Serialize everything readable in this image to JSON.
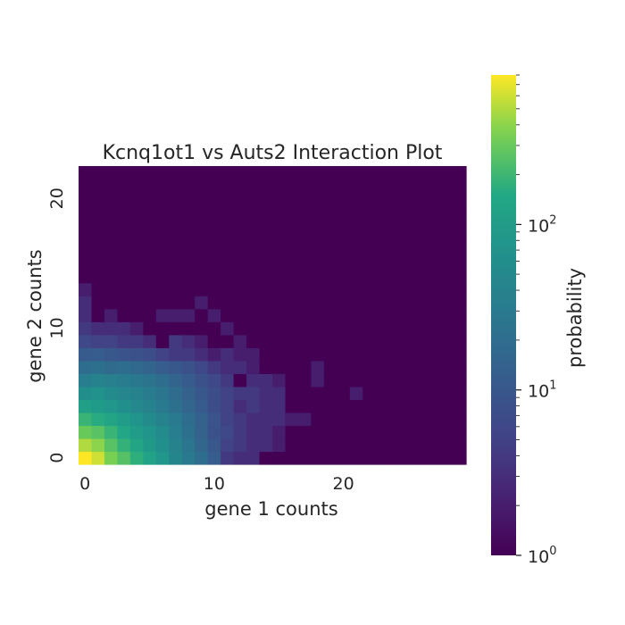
{
  "chart_data": {
    "type": "heatmap",
    "title": "Kcnq1ot1 vs Auts2 Interaction Plot",
    "xlabel": "gene 1 counts",
    "ylabel": "gene 2 counts",
    "x_ticks": [
      "0",
      "10",
      "20"
    ],
    "y_ticks": [
      "0",
      "10",
      "20"
    ],
    "x_range": [
      0,
      29
    ],
    "y_range": [
      0,
      22
    ],
    "colorbar": {
      "label": "probability",
      "scale": "log",
      "colormap": "viridis",
      "range": [
        1,
        800
      ],
      "ticks": [
        {
          "base": "10",
          "exp": "0"
        },
        {
          "base": "10",
          "exp": "1"
        },
        {
          "base": "10",
          "exp": "2"
        }
      ]
    },
    "background_value": 1,
    "rows": [
      {
        "y": 0,
        "values": [
          800,
          600,
          350,
          250,
          170,
          120,
          80,
          45,
          30,
          20,
          12,
          4,
          3,
          3
        ]
      },
      {
        "y": 1,
        "values": [
          500,
          400,
          260,
          180,
          130,
          90,
          65,
          40,
          26,
          16,
          10,
          5,
          4,
          3,
          3,
          2
        ]
      },
      {
        "y": 2,
        "values": [
          300,
          260,
          190,
          140,
          100,
          75,
          55,
          35,
          22,
          14,
          8,
          6,
          4,
          3,
          3,
          2
        ]
      },
      {
        "y": 3,
        "values": [
          190,
          160,
          130,
          100,
          75,
          55,
          42,
          30,
          20,
          14,
          9,
          5,
          4,
          3,
          3,
          3,
          2,
          2
        ]
      },
      {
        "y": 4,
        "values": [
          110,
          95,
          80,
          65,
          50,
          40,
          30,
          22,
          16,
          11,
          7,
          5,
          3,
          4,
          3,
          3
        ]
      },
      {
        "y": 5,
        "values": [
          60,
          70,
          55,
          48,
          40,
          33,
          26,
          19,
          14,
          10,
          7,
          5,
          4,
          4,
          3,
          3,
          1,
          1,
          1,
          1,
          1,
          2
        ]
      },
      {
        "y": 6,
        "values": [
          35,
          40,
          36,
          32,
          28,
          24,
          20,
          15,
          11,
          8,
          6,
          4,
          1,
          3,
          3,
          2,
          1,
          1,
          2,
          1
        ]
      },
      {
        "y": 7,
        "values": [
          20,
          22,
          18,
          20,
          17,
          15,
          12,
          10,
          8,
          6,
          4,
          3,
          3,
          2,
          1,
          1,
          1,
          1,
          2
        ]
      },
      {
        "y": 8,
        "values": [
          11,
          12,
          10,
          9,
          8,
          7,
          5,
          4,
          4,
          3,
          2,
          3,
          2,
          2
        ]
      },
      {
        "y": 9,
        "values": [
          6,
          5,
          5,
          4,
          4,
          3,
          1,
          4,
          3,
          2,
          1,
          1,
          2
        ]
      },
      {
        "y": 10,
        "values": [
          4,
          3,
          3,
          3,
          2,
          1,
          1,
          1,
          1,
          1,
          1,
          2
        ]
      },
      {
        "y": 11,
        "values": [
          3,
          1,
          2,
          1,
          1,
          1,
          2,
          2,
          2,
          1,
          2
        ]
      },
      {
        "y": 12,
        "values": [
          3,
          1,
          1,
          1,
          1,
          1,
          1,
          1,
          1,
          2
        ]
      },
      {
        "y": 13,
        "values": [
          2
        ]
      }
    ]
  }
}
